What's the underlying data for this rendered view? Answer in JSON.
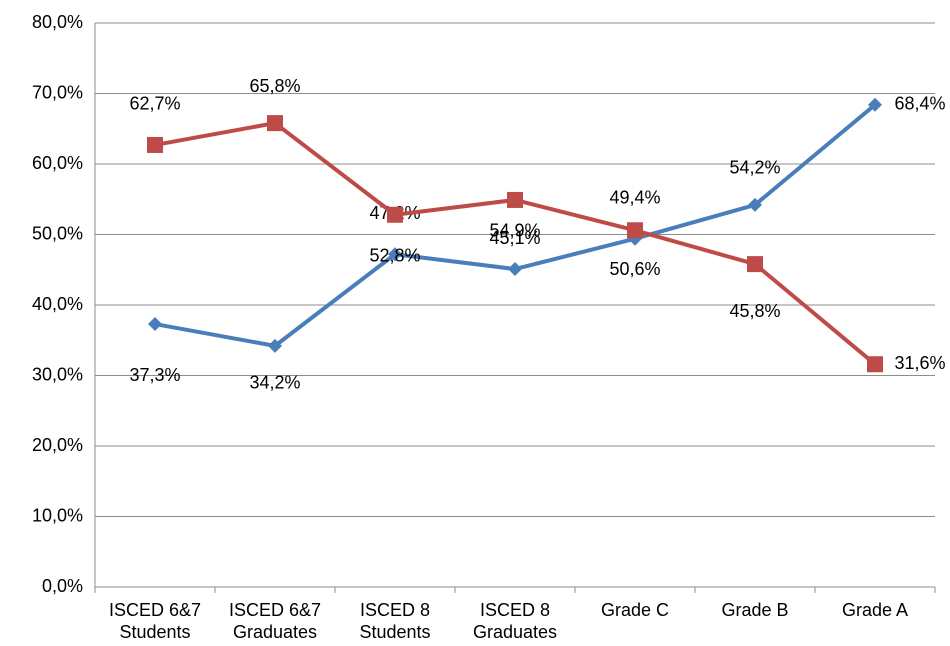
{
  "chart_data": {
    "type": "line",
    "categories": [
      "ISCED 6&7\nStudents",
      "ISCED 6&7\nGraduates",
      "ISCED 8\nStudents",
      "ISCED 8\nGraduates",
      "Grade C",
      "Grade B",
      "Grade A"
    ],
    "series": [
      {
        "color": "#4a7ebb",
        "marker": "diamond",
        "values": [
          37.3,
          34.2,
          47.2,
          45.1,
          49.4,
          54.2,
          68.4
        ],
        "value_labels": [
          "37,3%",
          "34,2%",
          "47,2%",
          "45,1%",
          "49,4%",
          "54,2%",
          "68,4%"
        ]
      },
      {
        "color": "#be4b48",
        "marker": "square",
        "values": [
          62.7,
          65.8,
          52.8,
          54.9,
          50.6,
          45.8,
          31.6
        ],
        "value_labels": [
          "62,7%",
          "65,8%",
          "52,8%",
          "54,9%",
          "50,6%",
          "45,8%",
          "31,6%"
        ]
      }
    ],
    "ylim": [
      0,
      80
    ],
    "yticks": [
      {
        "value": 0,
        "label": "0,0%"
      },
      {
        "value": 10,
        "label": "10,0%"
      },
      {
        "value": 20,
        "label": "20,0%"
      },
      {
        "value": 30,
        "label": "30,0%"
      },
      {
        "value": 40,
        "label": "40,0%"
      },
      {
        "value": 50,
        "label": "50,0%"
      },
      {
        "value": 60,
        "label": "60,0%"
      },
      {
        "value": 70,
        "label": "70,0%"
      },
      {
        "value": 80,
        "label": "80,0%"
      }
    ],
    "grid": true
  }
}
